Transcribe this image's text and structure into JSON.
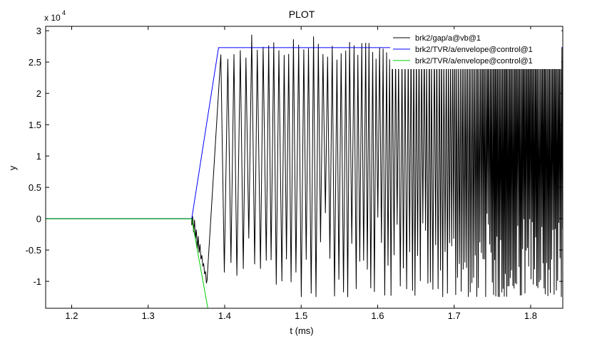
{
  "chart_data": {
    "type": "line",
    "title": "PLOT",
    "xlabel": "t (ms)",
    "ylabel": "y",
    "y_multiplier": "x 10",
    "y_multiplier_exponent": "4",
    "xlim": [
      1.166,
      1.842
    ],
    "ylim": [
      -1.43,
      3.07
    ],
    "xticks": [
      1.2,
      1.3,
      1.4,
      1.5,
      1.6,
      1.7,
      1.8
    ],
    "xtick_labels": [
      "1.2",
      "1.3",
      "1.4",
      "1.5",
      "1.6",
      "1.7",
      "1.8"
    ],
    "yticks": [
      -1,
      -0.5,
      0,
      0.5,
      1,
      1.5,
      2,
      2.5,
      3
    ],
    "ytick_labels": [
      "-1",
      "-0.5",
      "0",
      "0.5",
      "1",
      "1.5",
      "2",
      "2.5",
      "3"
    ],
    "grid": false,
    "legend_position": "top-right",
    "series": [
      {
        "name": "brk2/gap/a@vb@1",
        "color": "#000000",
        "oscillation": {
          "start": [
            1.357,
            0
          ],
          "initial_dip_min": [
            1.377,
            -0.98
          ],
          "first_peak": [
            1.395,
            2.62
          ],
          "upper_peak_range": [
            2.5,
            2.95
          ],
          "lower_trough_range": [
            -1.35,
            0.15
          ],
          "frequency_ramp": "increasing, dense after 1.62"
        }
      },
      {
        "name": "brk2/TVR/a/envelope@control@1",
        "color": "#0000ff",
        "x": [
          1.166,
          1.357,
          1.392,
          1.842
        ],
        "y": [
          0,
          0,
          2.73,
          2.73
        ]
      },
      {
        "name": "brk2/TVR/a/envelope@control@1",
        "color": "#00cc00",
        "x": [
          1.166,
          1.357,
          1.378
        ],
        "y": [
          0,
          0,
          -1.43
        ]
      }
    ]
  }
}
